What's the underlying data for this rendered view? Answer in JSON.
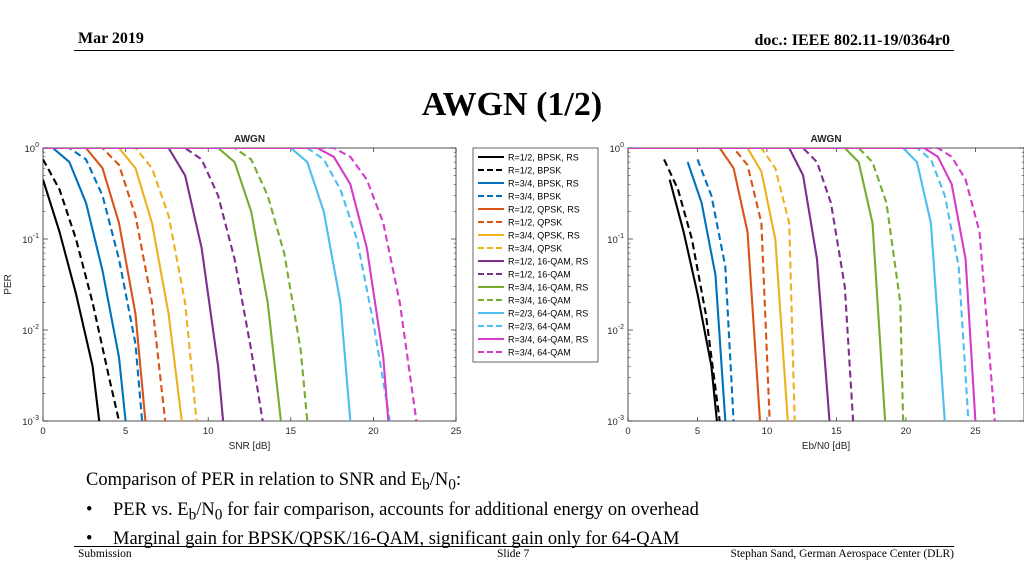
{
  "header": {
    "date": "Mar 2019",
    "doc": "doc.: IEEE 802.11-19/0364r0"
  },
  "slide_title": "AWGN (1/2)",
  "caption": {
    "intro_prefix": "Comparison of PER in relation to SNR and E",
    "intro_sub1": "b",
    "intro_mid": "/N",
    "intro_sub2": "0",
    "intro_suffix": ":",
    "bullet_char": "•",
    "b1_prefix": "PER vs. E",
    "b1_sub1": "b",
    "b1_mid": "/N",
    "b1_sub2": "0",
    "b1_suffix": " for fair comparison, accounts for additional energy on overhead",
    "b2": "Marginal gain for BPSK/QPSK/16-QAM, significant gain only for 64-QAM"
  },
  "footer": {
    "left": "Submission",
    "center": "Slide 7",
    "right": "Stephan Sand, German Aerospace Center (DLR)"
  },
  "chart_data": [
    {
      "type": "line",
      "title": "AWGN",
      "xlabel": "SNR [dB]",
      "ylabel": "PER",
      "xlim": [
        0,
        25
      ],
      "ylim": [
        0.001,
        1
      ],
      "yscale": "log",
      "xticks": [
        "0",
        "5",
        "10",
        "15",
        "20",
        "25"
      ],
      "yticks": [
        {
          "base": "10",
          "exp": "0"
        },
        {
          "base": "10",
          "exp": "-1"
        },
        {
          "base": "10",
          "exp": "-2"
        },
        {
          "base": "10",
          "exp": "-3"
        }
      ],
      "legend_position": "right",
      "series": [
        {
          "name": "R=1/2, BPSK, RS",
          "color": "#000000",
          "dash": false,
          "x": [
            0,
            1,
            2,
            3,
            3.4
          ],
          "y": [
            0.45,
            0.12,
            0.025,
            0.004,
            0.001
          ]
        },
        {
          "name": "R=1/2, BPSK",
          "color": "#000000",
          "dash": true,
          "x": [
            0,
            1,
            2,
            3,
            4,
            4.6
          ],
          "y": [
            0.75,
            0.35,
            0.1,
            0.02,
            0.003,
            0.001
          ]
        },
        {
          "name": "R=3/4, BPSK, RS",
          "color": "#0072BD",
          "dash": false,
          "x": [
            0.6,
            1.6,
            2.6,
            3.6,
            4.6,
            5.0
          ],
          "y": [
            1,
            0.7,
            0.25,
            0.045,
            0.005,
            0.001
          ]
        },
        {
          "name": "R=3/4, BPSK",
          "color": "#0072BD",
          "dash": true,
          "x": [
            1.6,
            2.6,
            3.6,
            4.6,
            5.6,
            6.0
          ],
          "y": [
            1,
            0.75,
            0.3,
            0.06,
            0.007,
            0.001
          ]
        },
        {
          "name": "R=1/2, QPSK, RS",
          "color": "#D95319",
          "dash": false,
          "x": [
            2.6,
            3.6,
            4.6,
            5.6,
            6.2
          ],
          "y": [
            1,
            0.6,
            0.15,
            0.015,
            0.001
          ]
        },
        {
          "name": "R=1/2, QPSK",
          "color": "#D95319",
          "dash": true,
          "x": [
            3.6,
            4.6,
            5.6,
            6.6,
            7.4
          ],
          "y": [
            1,
            0.65,
            0.18,
            0.02,
            0.001
          ]
        },
        {
          "name": "R=3/4, QPSK, RS",
          "color": "#EDB120",
          "dash": false,
          "x": [
            4.6,
            5.6,
            6.6,
            7.6,
            8.4
          ],
          "y": [
            1,
            0.6,
            0.15,
            0.015,
            0.001
          ]
        },
        {
          "name": "R=3/4, QPSK",
          "color": "#EDB120",
          "dash": true,
          "x": [
            5.6,
            6.6,
            7.6,
            8.6,
            9.3
          ],
          "y": [
            1,
            0.6,
            0.18,
            0.02,
            0.001
          ]
        },
        {
          "name": "R=1/2, 16-QAM, RS",
          "color": "#7E2F8E",
          "dash": false,
          "x": [
            7.6,
            8.6,
            9.6,
            10.6,
            10.9
          ],
          "y": [
            1,
            0.5,
            0.08,
            0.004,
            0.001
          ]
        },
        {
          "name": "R=1/2, 16-QAM",
          "color": "#7E2F8E",
          "dash": true,
          "x": [
            8.6,
            9.6,
            10.6,
            11.6,
            12.6,
            13.3
          ],
          "y": [
            1,
            0.75,
            0.3,
            0.06,
            0.006,
            0.001
          ]
        },
        {
          "name": "R=3/4, 16-QAM, RS",
          "color": "#77AC30",
          "dash": false,
          "x": [
            10.6,
            11.6,
            12.6,
            13.6,
            14.4
          ],
          "y": [
            1,
            0.7,
            0.2,
            0.02,
            0.001
          ]
        },
        {
          "name": "R=3/4, 16-QAM",
          "color": "#77AC30",
          "dash": true,
          "x": [
            11.6,
            12.6,
            13.6,
            14.6,
            15.6,
            16.0
          ],
          "y": [
            1,
            0.75,
            0.3,
            0.07,
            0.006,
            0.001
          ]
        },
        {
          "name": "R=2/3, 64-QAM, RS",
          "color": "#4DBEEE",
          "dash": false,
          "x": [
            15.0,
            16.0,
            17.0,
            18.0,
            18.6
          ],
          "y": [
            1,
            0.7,
            0.2,
            0.02,
            0.001
          ]
        },
        {
          "name": "R=2/3, 64-QAM",
          "color": "#4DBEEE",
          "dash": true,
          "x": [
            16.0,
            17.0,
            18.0,
            19.0,
            20.0,
            21.0
          ],
          "y": [
            1,
            0.75,
            0.35,
            0.1,
            0.012,
            0.001
          ]
        },
        {
          "name": "R=3/4, 64-QAM, RS",
          "color": "#D53CC7",
          "dash": false,
          "x": [
            16.6,
            17.6,
            18.6,
            19.6,
            20.6,
            20.9
          ],
          "y": [
            1,
            0.8,
            0.4,
            0.08,
            0.005,
            0.001
          ]
        },
        {
          "name": "R=3/4, 64-QAM",
          "color": "#D53CC7",
          "dash": true,
          "x": [
            17.6,
            18.6,
            19.6,
            20.6,
            21.6,
            22.6
          ],
          "y": [
            1,
            0.8,
            0.45,
            0.15,
            0.02,
            0.001
          ]
        }
      ]
    },
    {
      "type": "line",
      "title": "AWGN",
      "xlabel": "Eb/N0 [dB]",
      "ylabel": "",
      "xlim": [
        0,
        28.5
      ],
      "ylim": [
        0.001,
        1
      ],
      "yscale": "log",
      "xticks": [
        "0",
        "5",
        "10",
        "15",
        "20",
        "25"
      ],
      "xtick_values": [
        0,
        5,
        10,
        15,
        20,
        25
      ],
      "yticks": [
        {
          "base": "10",
          "exp": "0"
        },
        {
          "base": "10",
          "exp": "-1"
        },
        {
          "base": "10",
          "exp": "-2"
        },
        {
          "base": "10",
          "exp": "-3"
        }
      ],
      "series": [
        {
          "color": "#000000",
          "dash": false,
          "x": [
            3.0,
            4.0,
            5.0,
            6.0,
            6.4
          ],
          "y": [
            0.45,
            0.12,
            0.025,
            0.004,
            0.001
          ]
        },
        {
          "color": "#000000",
          "dash": true,
          "x": [
            2.6,
            3.6,
            4.6,
            5.6,
            6.6
          ],
          "y": [
            0.75,
            0.35,
            0.1,
            0.015,
            0.001
          ]
        },
        {
          "color": "#0072BD",
          "dash": false,
          "x": [
            4.3,
            5.3,
            6.3,
            7.0
          ],
          "y": [
            0.7,
            0.25,
            0.04,
            0.001
          ]
        },
        {
          "color": "#0072BD",
          "dash": true,
          "x": [
            5.0,
            6.0,
            7.0,
            7.6
          ],
          "y": [
            0.75,
            0.3,
            0.05,
            0.001
          ]
        },
        {
          "color": "#D95319",
          "dash": false,
          "x": [
            6.6,
            7.6,
            8.6,
            9.5
          ],
          "y": [
            1,
            0.6,
            0.12,
            0.001
          ]
        },
        {
          "color": "#D95319",
          "dash": true,
          "x": [
            7.6,
            8.6,
            9.6,
            10.2
          ],
          "y": [
            1,
            0.65,
            0.15,
            0.001
          ]
        },
        {
          "color": "#EDB120",
          "dash": false,
          "x": [
            8.6,
            9.6,
            10.6,
            11.5
          ],
          "y": [
            1,
            0.55,
            0.1,
            0.001
          ]
        },
        {
          "color": "#EDB120",
          "dash": true,
          "x": [
            9.6,
            10.6,
            11.6,
            12.0
          ],
          "y": [
            1,
            0.6,
            0.15,
            0.001
          ]
        },
        {
          "color": "#7E2F8E",
          "dash": false,
          "x": [
            11.6,
            12.6,
            13.6,
            14.5
          ],
          "y": [
            1,
            0.5,
            0.06,
            0.001
          ]
        },
        {
          "color": "#7E2F8E",
          "dash": true,
          "x": [
            12.6,
            13.6,
            14.6,
            15.6,
            16.2
          ],
          "y": [
            1,
            0.7,
            0.25,
            0.03,
            0.001
          ]
        },
        {
          "color": "#77AC30",
          "dash": false,
          "x": [
            15.6,
            16.6,
            17.6,
            18.5
          ],
          "y": [
            1,
            0.7,
            0.15,
            0.001
          ]
        },
        {
          "color": "#77AC30",
          "dash": true,
          "x": [
            16.6,
            17.6,
            18.6,
            19.6,
            19.8
          ],
          "y": [
            1,
            0.7,
            0.25,
            0.02,
            0.001
          ]
        },
        {
          "color": "#4DBEEE",
          "dash": false,
          "x": [
            19.8,
            20.8,
            21.8,
            22.8
          ],
          "y": [
            1,
            0.7,
            0.15,
            0.001
          ]
        },
        {
          "color": "#4DBEEE",
          "dash": true,
          "x": [
            20.8,
            21.8,
            22.8,
            23.8,
            24.5
          ],
          "y": [
            1,
            0.75,
            0.3,
            0.05,
            0.001
          ]
        },
        {
          "color": "#D53CC7",
          "dash": false,
          "x": [
            21.3,
            22.3,
            23.3,
            24.3,
            25.0
          ],
          "y": [
            1,
            0.8,
            0.4,
            0.06,
            0.001
          ]
        },
        {
          "color": "#D53CC7",
          "dash": true,
          "x": [
            22.3,
            23.3,
            24.3,
            25.3,
            26.4
          ],
          "y": [
            1,
            0.8,
            0.45,
            0.12,
            0.001
          ]
        }
      ]
    }
  ]
}
